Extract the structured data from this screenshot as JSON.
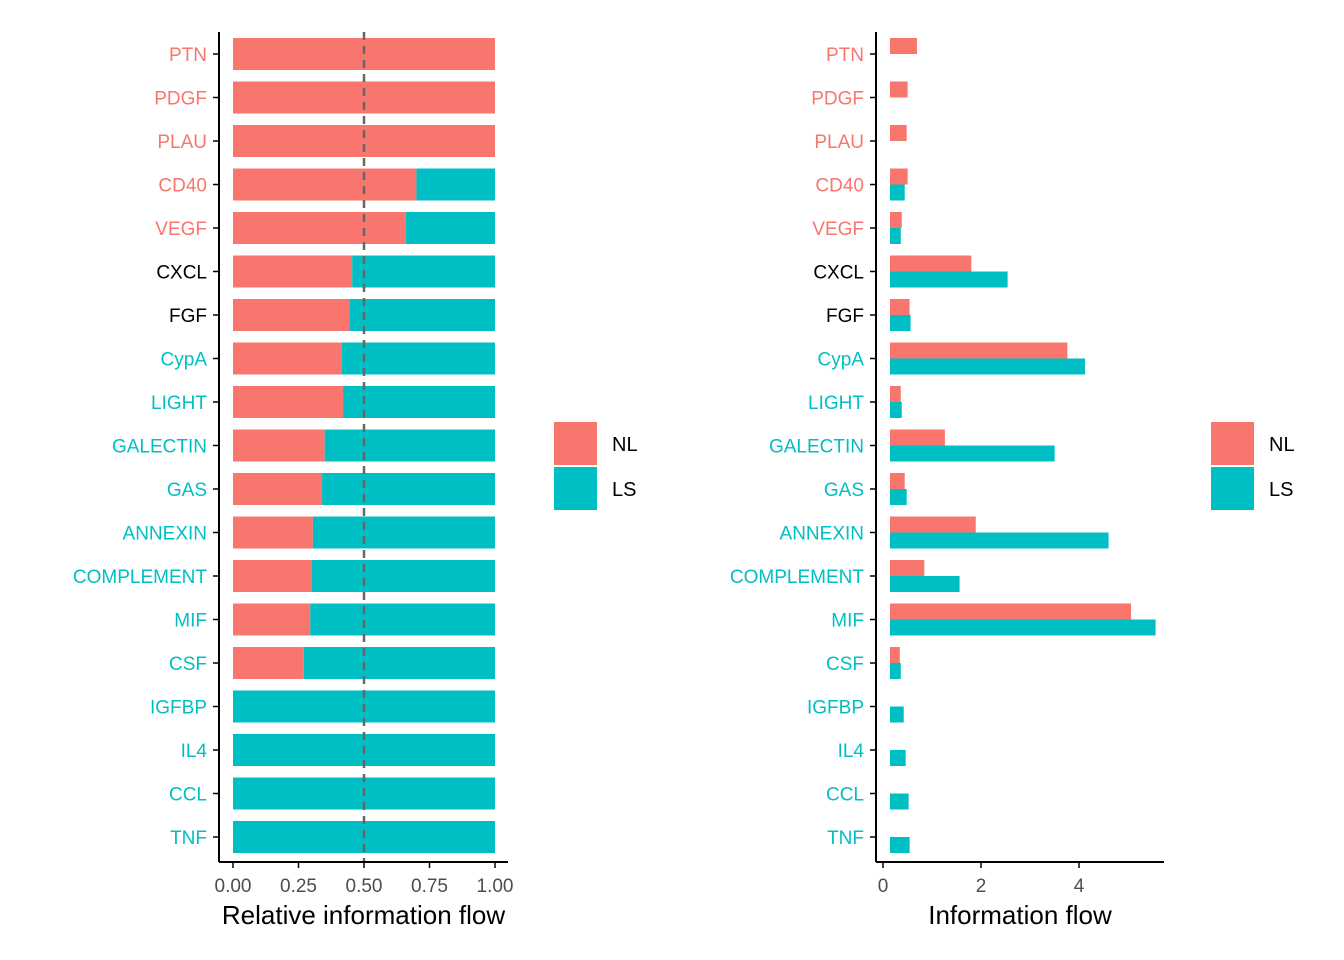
{
  "colors": {
    "NL": "#F8766D",
    "LS": "#00BFC4",
    "label_default": "#000000",
    "axis": "#000000",
    "tick_text": "#4D4D4D",
    "dashed_line": "#666666"
  },
  "legend": {
    "entries": [
      "NL",
      "LS"
    ]
  },
  "chart_data": [
    {
      "type": "bar",
      "orientation": "horizontal",
      "stacked": true,
      "xlabel": "Relative information flow",
      "xlim": [
        0,
        1
      ],
      "x_ticks": [
        "0.00",
        "0.25",
        "0.50",
        "0.75",
        "1.00"
      ],
      "reference_line": 0.5,
      "categories": [
        "PTN",
        "PDGF",
        "PLAU",
        "CD40",
        "VEGF",
        "CXCL",
        "FGF",
        "CypA",
        "LIGHT",
        "GALECTIN",
        "GAS",
        "ANNEXIN",
        "COMPLEMENT",
        "MIF",
        "CSF",
        "IGFBP",
        "IL4",
        "CCL",
        "TNF"
      ],
      "category_label_colors": [
        "NL",
        "NL",
        "NL",
        "NL",
        "NL",
        "none",
        "none",
        "LS",
        "LS",
        "LS",
        "LS",
        "LS",
        "LS",
        "LS",
        "LS",
        "LS",
        "LS",
        "LS",
        "LS"
      ],
      "series": [
        {
          "name": "NL",
          "values": [
            1.0,
            1.0,
            1.0,
            0.7,
            0.66,
            0.455,
            0.445,
            0.415,
            0.42,
            0.35,
            0.34,
            0.305,
            0.3,
            0.295,
            0.27,
            0,
            0,
            0,
            0
          ]
        },
        {
          "name": "LS",
          "values": [
            0,
            0,
            0,
            0.3,
            0.34,
            0.545,
            0.555,
            0.585,
            0.58,
            0.65,
            0.66,
            0.695,
            0.7,
            0.705,
            0.73,
            1.0,
            1.0,
            1.0,
            1.0
          ]
        }
      ],
      "legend_position": "right"
    },
    {
      "type": "bar",
      "orientation": "horizontal",
      "grouped": true,
      "xlabel": "Information flow",
      "xlim": [
        0,
        5.6
      ],
      "x_ticks": [
        "0",
        "2",
        "4"
      ],
      "categories": [
        "PTN",
        "PDGF",
        "PLAU",
        "CD40",
        "VEGF",
        "CXCL",
        "FGF",
        "CypA",
        "LIGHT",
        "GALECTIN",
        "GAS",
        "ANNEXIN",
        "COMPLEMENT",
        "MIF",
        "CSF",
        "IGFBP",
        "IL4",
        "CCL",
        "TNF"
      ],
      "category_label_colors": [
        "NL",
        "NL",
        "NL",
        "NL",
        "NL",
        "none",
        "none",
        "LS",
        "LS",
        "LS",
        "LS",
        "LS",
        "LS",
        "LS",
        "LS",
        "LS",
        "LS",
        "LS",
        "LS"
      ],
      "series": [
        {
          "name": "NL",
          "values": [
            0.55,
            0.36,
            0.34,
            0.36,
            0.24,
            1.66,
            0.4,
            3.62,
            0.22,
            1.12,
            0.3,
            1.75,
            0.7,
            4.92,
            0.2,
            0,
            0,
            0,
            0
          ]
        },
        {
          "name": "LS",
          "values": [
            0,
            0,
            0,
            0.3,
            0.22,
            2.4,
            0.42,
            3.98,
            0.24,
            3.36,
            0.34,
            4.46,
            1.42,
            5.42,
            0.22,
            0.28,
            0.32,
            0.38,
            0.4
          ]
        }
      ],
      "legend_position": "right"
    }
  ]
}
